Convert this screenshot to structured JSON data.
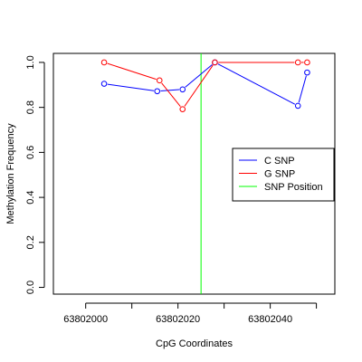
{
  "chart_data": {
    "type": "line",
    "title": "",
    "xlabel": "CpG Coordinates",
    "ylabel": "Methylation Frequency",
    "xlim": [
      63801993,
      63802054
    ],
    "ylim": [
      -0.03,
      1.04
    ],
    "x_ticks": [
      63802000,
      63802020,
      63802040
    ],
    "x_tick_labels": [
      "63802000",
      "63802020",
      "63802040"
    ],
    "y_ticks": [
      0.0,
      0.2,
      0.4,
      0.6,
      0.8,
      1.0
    ],
    "y_tick_labels": [
      "0.0",
      "0.2",
      "0.4",
      "0.6",
      "0.8",
      "1.0"
    ],
    "grid": false,
    "legend_position": "right",
    "series": [
      {
        "name": "C SNP",
        "color": "#0000ff",
        "x": [
          63802004,
          63802015.5,
          63802021,
          63802028,
          63802046,
          63802048
        ],
        "y": [
          0.905,
          0.872,
          0.88,
          1.0,
          0.807,
          0.955
        ]
      },
      {
        "name": "G SNP",
        "color": "#ff0000",
        "x": [
          63802004,
          63802016,
          63802021,
          63802028,
          63802046,
          63802048
        ],
        "y": [
          1.0,
          0.92,
          0.792,
          1.0,
          1.0,
          1.0
        ]
      }
    ],
    "vlines": [
      {
        "name": "SNP Position",
        "color": "#00ff00",
        "x": 63802025
      }
    ]
  }
}
